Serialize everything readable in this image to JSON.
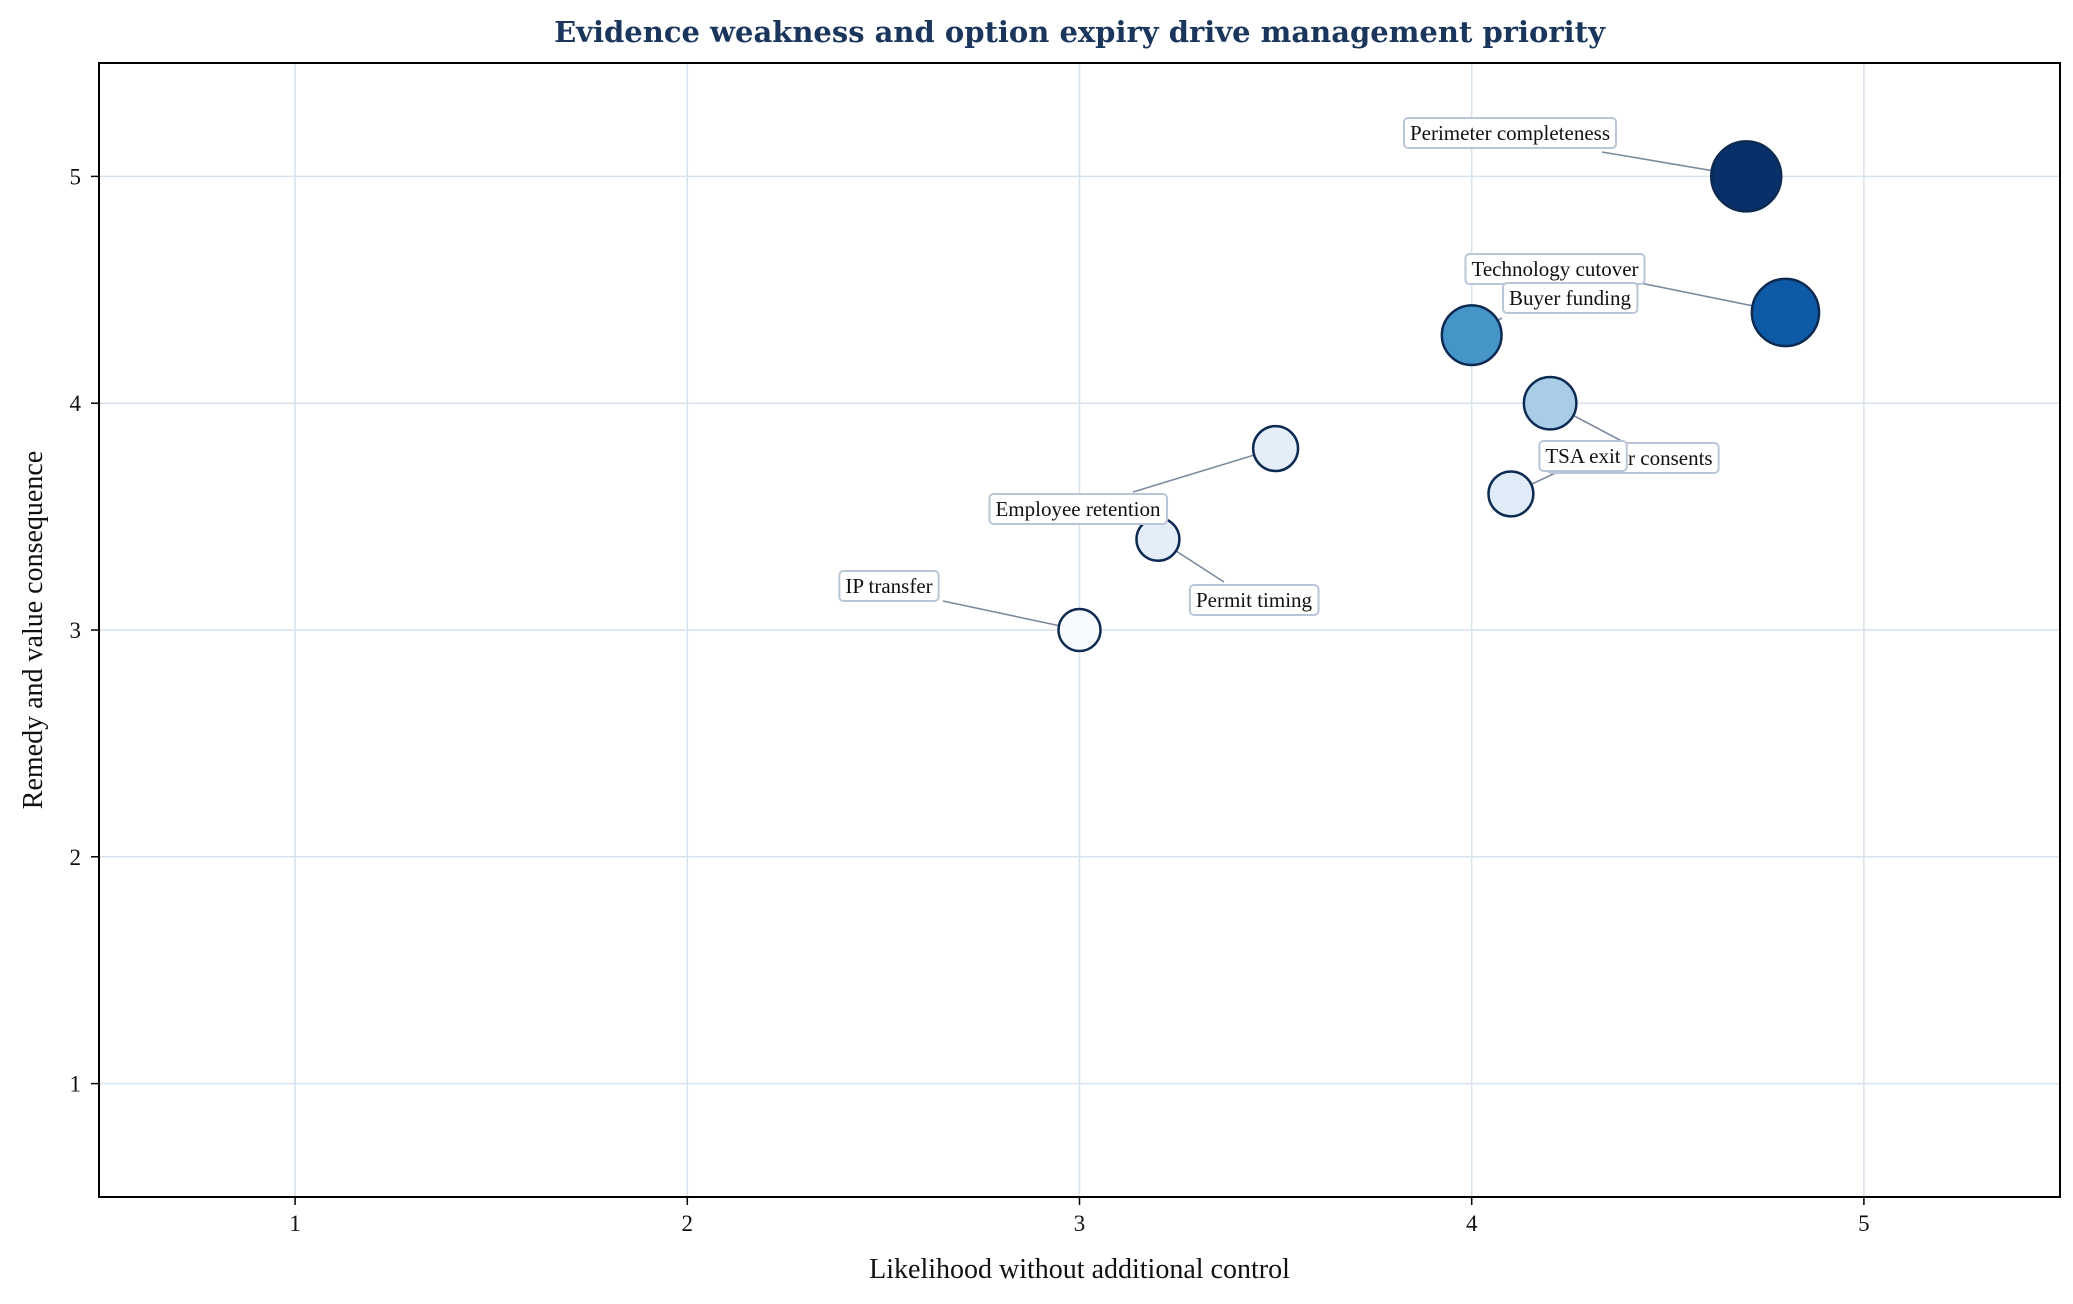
{
  "chart_data": {
    "type": "scatter",
    "title": "Evidence weakness and option expiry drive management priority",
    "xlabel": "Likelihood without additional control",
    "ylabel": "Remedy and value consequence",
    "xlim": [
      0.5,
      5.5
    ],
    "ylim": [
      0.5,
      5.5
    ],
    "xticks": [
      "1",
      "2",
      "3",
      "4",
      "5"
    ],
    "yticks": [
      "1",
      "2",
      "3",
      "4",
      "5"
    ],
    "grid": true,
    "colors": {
      "title": "#1b365d",
      "grid": "#d6e2ee",
      "axis": "#000000",
      "marker_edge": "#0d2a52",
      "leader": "#7b8aa0",
      "label_box_edge": "#b9c6d8",
      "label_box_fill": "#ffffff"
    },
    "points": [
      {
        "label": "Perimeter completeness",
        "x": 4.7,
        "y": 5.0,
        "relative_size": 1.0,
        "color": "#08306b"
      },
      {
        "label": "Technology cutover",
        "x": 4.8,
        "y": 4.4,
        "relative_size": 0.95,
        "color": "#0f5aa6"
      },
      {
        "label": "Buyer funding",
        "x": 4.0,
        "y": 4.3,
        "relative_size": 0.82,
        "color": "#4695c8"
      },
      {
        "label": "Customer consents",
        "x": 4.2,
        "y": 4.0,
        "relative_size": 0.7,
        "color": "#a9cde6"
      },
      {
        "label": "TSA exit",
        "x": 4.1,
        "y": 3.6,
        "relative_size": 0.58,
        "color": "#dfebf7"
      },
      {
        "label": "Employee retention",
        "x": 3.5,
        "y": 3.8,
        "relative_size": 0.58,
        "color": "#e3eef9"
      },
      {
        "label": "Permit timing",
        "x": 3.2,
        "y": 3.4,
        "relative_size": 0.55,
        "color": "#e3eef9"
      },
      {
        "label": "IP transfer",
        "x": 3.0,
        "y": 3.0,
        "relative_size": 0.52,
        "color": "#f7fbff"
      }
    ]
  }
}
